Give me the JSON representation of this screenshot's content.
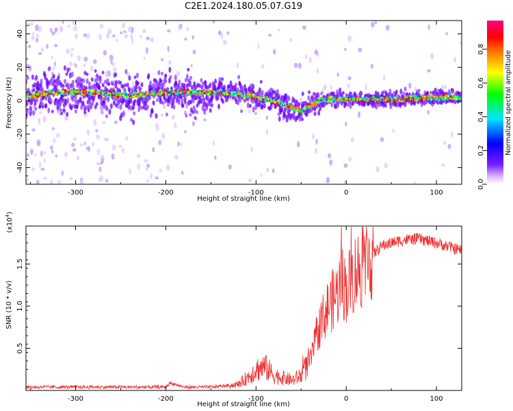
{
  "title": "C2E1.2024.180.05.07.G19",
  "chart_data": [
    {
      "type": "heatmap",
      "xlabel": "Height of straight line (km)",
      "ylabel": "Frequency (Hz)",
      "xlim": [
        -355,
        128
      ],
      "ylim": [
        -50,
        48
      ],
      "x_ticks": [
        -300,
        -200,
        -100,
        0,
        100
      ],
      "y_ticks": [
        -40,
        -20,
        0,
        20,
        40
      ],
      "colorbar": {
        "label": "Normalized spectral amplitude",
        "range": [
          0,
          1
        ],
        "ticks": [
          "0.0",
          "0.2",
          "0.4",
          "0.6",
          "0.8"
        ],
        "colors": [
          "#ffffff",
          "#b05aff",
          "#5000ff",
          "#0000ff",
          "#00ffff",
          "#00ff00",
          "#ffff00",
          "#ff8000",
          "#ff0000",
          "#ff0080"
        ]
      },
      "ridge": {
        "x": [
          -355,
          -320,
          -300,
          -280,
          -260,
          -240,
          -220,
          -200,
          -180,
          -160,
          -140,
          -120,
          -100,
          -90,
          -80,
          -70,
          -60,
          -50,
          -40,
          -30,
          -20,
          0,
          20,
          40,
          60,
          80,
          100,
          128
        ],
        "y": [
          3,
          5,
          5,
          5,
          4,
          3,
          4,
          5,
          5,
          5,
          5,
          4,
          2,
          1,
          0,
          -2,
          -4,
          -6,
          -3,
          0,
          1,
          1,
          1,
          1,
          1,
          2,
          2,
          2
        ]
      }
    },
    {
      "type": "line",
      "xlabel": "Height of straight line (km)",
      "ylabel": "SNR (10 * v/v)",
      "y_multiplier": "(x10",
      "y_multiplier_exp": "4",
      "xlim": [
        -355,
        128
      ],
      "ylim": [
        0,
        1.95
      ],
      "x_ticks": [
        -300,
        -200,
        -100,
        0,
        100
      ],
      "y_ticks": [
        "0.5",
        "1.0",
        "1.5"
      ],
      "line_color": "#ee3333",
      "envelope": {
        "x": [
          -355,
          -200,
          -195,
          -180,
          -150,
          -120,
          -110,
          -100,
          -90,
          -80,
          -70,
          -60,
          -50,
          -40,
          -30,
          -20,
          -10,
          -5,
          0,
          10,
          20,
          30,
          40,
          50,
          60,
          80,
          100,
          128
        ],
        "y": [
          0.04,
          0.04,
          0.09,
          0.04,
          0.04,
          0.07,
          0.15,
          0.25,
          0.28,
          0.18,
          0.15,
          0.12,
          0.18,
          0.35,
          0.75,
          1.0,
          1.15,
          1.3,
          1.2,
          1.4,
          1.5,
          1.62,
          1.72,
          1.75,
          1.78,
          1.8,
          1.75,
          1.66
        ]
      }
    }
  ]
}
